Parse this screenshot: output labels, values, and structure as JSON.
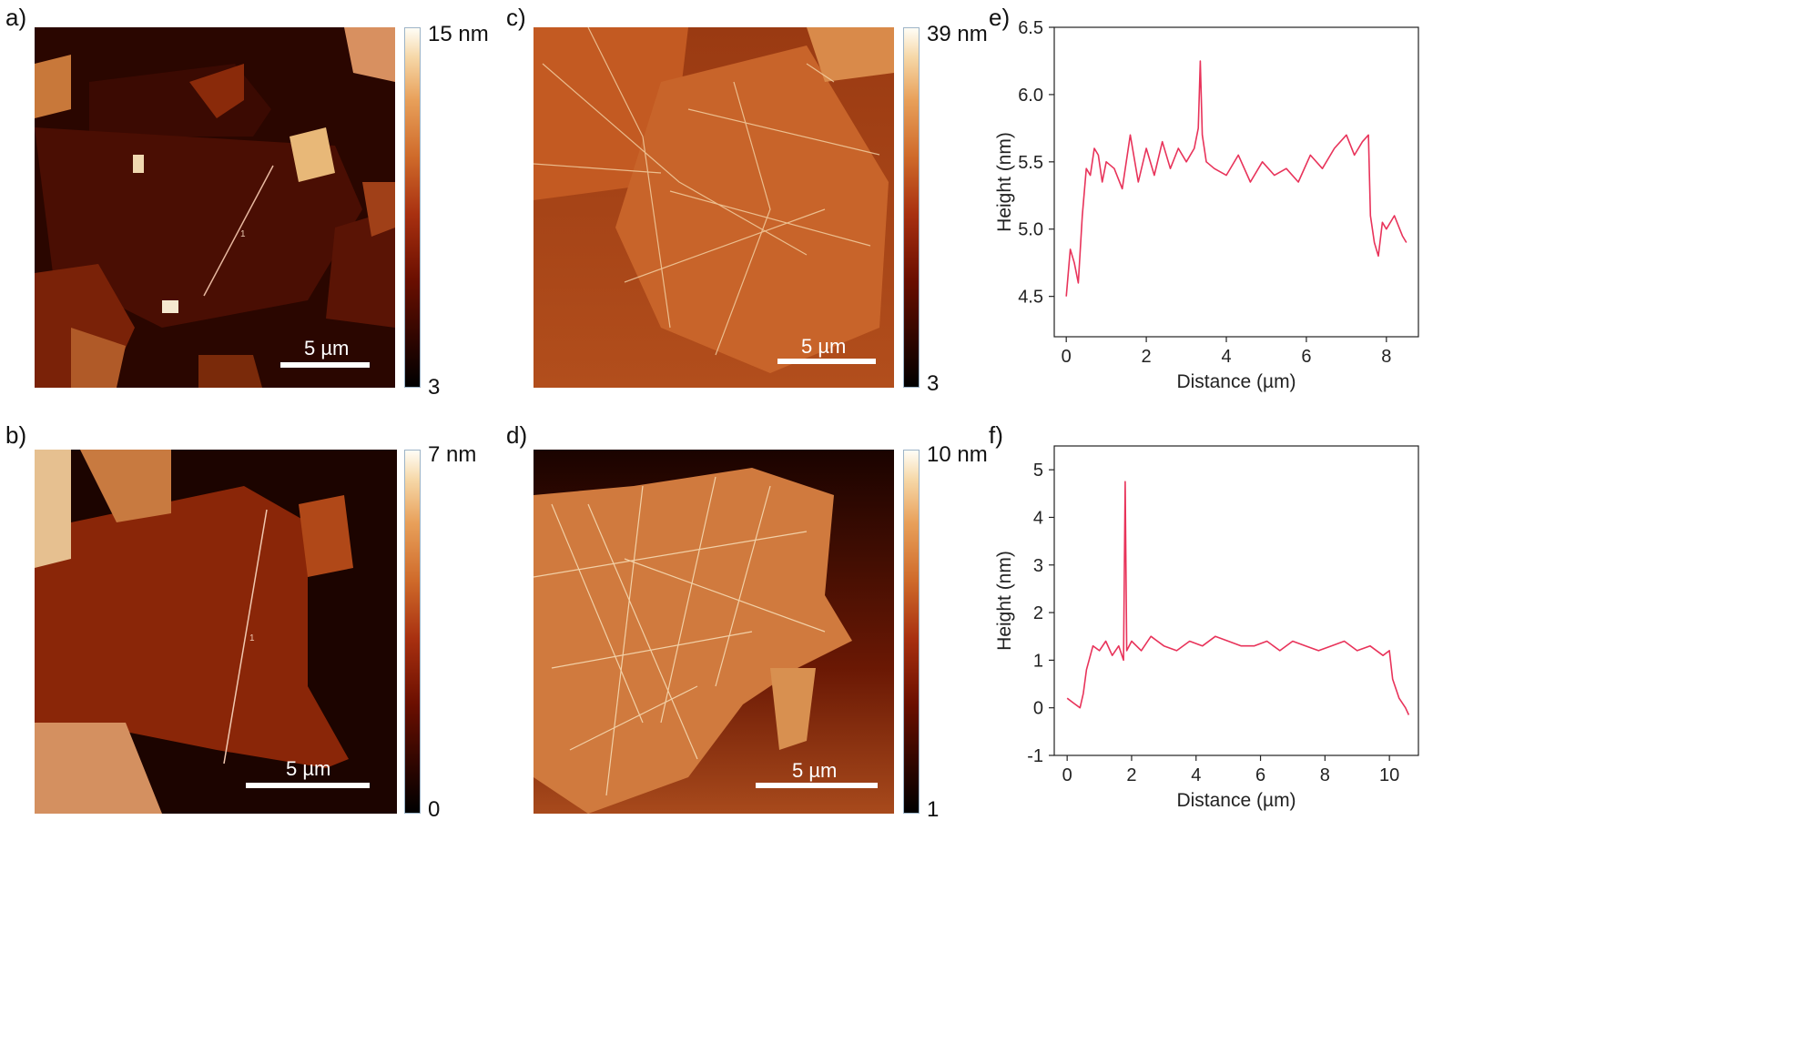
{
  "panels": {
    "a": {
      "label": "a)",
      "cbar_max": "15 nm",
      "cbar_min": "3",
      "scale": "5 µm",
      "profile_marker": "1"
    },
    "b": {
      "label": "b)",
      "cbar_max": "7 nm",
      "cbar_min": "0",
      "scale": "5 µm",
      "profile_marker": "1"
    },
    "c": {
      "label": "c)",
      "cbar_max": "39 nm",
      "cbar_min": "3",
      "scale": "5 µm"
    },
    "d": {
      "label": "d)",
      "cbar_max": "10 nm",
      "cbar_min": "1",
      "scale": "5 µm"
    },
    "e": {
      "label": "e)"
    },
    "f": {
      "label": "f)"
    }
  },
  "colors": {
    "trace": "#e8335a",
    "bg_dark": "#1a0200",
    "mid": "#8a1c04",
    "high": "#f4d29c"
  },
  "chart_data": [
    {
      "panel": "e",
      "type": "line",
      "xlabel": "Distance (µm)",
      "ylabel": "Height (nm)",
      "xlim": [
        -0.3,
        8.8
      ],
      "ylim": [
        4.2,
        6.5
      ],
      "xticks": [
        0,
        2,
        4,
        6,
        8
      ],
      "yticks": [
        4.5,
        5.0,
        5.5,
        6.0,
        6.5
      ],
      "ytick_labels": [
        "4.5",
        "5.0",
        "5.5",
        "6.0",
        "6.5"
      ],
      "series": [
        {
          "x": [
            0,
            0.1,
            0.2,
            0.3,
            0.4,
            0.5,
            0.6,
            0.7,
            0.8,
            0.9,
            1.0,
            1.2,
            1.4,
            1.6,
            1.8,
            2.0,
            2.2,
            2.4,
            2.6,
            2.8,
            3.0,
            3.2,
            3.3,
            3.35,
            3.4,
            3.5,
            3.7,
            4.0,
            4.3,
            4.6,
            4.9,
            5.2,
            5.5,
            5.8,
            6.1,
            6.4,
            6.7,
            7.0,
            7.2,
            7.4,
            7.55,
            7.6,
            7.7,
            7.8,
            7.9,
            8.0,
            8.2,
            8.4,
            8.5
          ],
          "y": [
            4.5,
            4.85,
            4.75,
            4.6,
            5.1,
            5.45,
            5.4,
            5.6,
            5.55,
            5.35,
            5.5,
            5.45,
            5.3,
            5.7,
            5.35,
            5.6,
            5.4,
            5.65,
            5.45,
            5.6,
            5.5,
            5.6,
            5.75,
            6.25,
            5.7,
            5.5,
            5.45,
            5.4,
            5.55,
            5.35,
            5.5,
            5.4,
            5.45,
            5.35,
            5.55,
            5.45,
            5.6,
            5.7,
            5.55,
            5.65,
            5.7,
            5.1,
            4.9,
            4.8,
            5.05,
            5.0,
            5.1,
            4.95,
            4.9
          ]
        }
      ]
    },
    {
      "panel": "f",
      "type": "line",
      "xlabel": "Distance (µm)",
      "ylabel": "Height (nm)",
      "xlim": [
        -0.4,
        10.9
      ],
      "ylim": [
        -1,
        5.5
      ],
      "xticks": [
        0,
        2,
        4,
        6,
        8,
        10
      ],
      "yticks": [
        -1,
        0,
        1,
        2,
        3,
        4,
        5
      ],
      "ytick_labels": [
        "-1",
        "0",
        "1",
        "2",
        "3",
        "4",
        "5"
      ],
      "series": [
        {
          "x": [
            0,
            0.2,
            0.4,
            0.5,
            0.6,
            0.8,
            1.0,
            1.2,
            1.4,
            1.6,
            1.75,
            1.8,
            1.85,
            2.0,
            2.3,
            2.6,
            3.0,
            3.4,
            3.8,
            4.2,
            4.6,
            5.0,
            5.4,
            5.8,
            6.2,
            6.6,
            7.0,
            7.4,
            7.8,
            8.2,
            8.6,
            9.0,
            9.4,
            9.8,
            10.0,
            10.1,
            10.3,
            10.5,
            10.6
          ],
          "y": [
            0.2,
            0.1,
            0.0,
            0.3,
            0.8,
            1.3,
            1.2,
            1.4,
            1.1,
            1.3,
            1.0,
            4.75,
            1.2,
            1.4,
            1.2,
            1.5,
            1.3,
            1.2,
            1.4,
            1.3,
            1.5,
            1.4,
            1.3,
            1.3,
            1.4,
            1.2,
            1.4,
            1.3,
            1.2,
            1.3,
            1.4,
            1.2,
            1.3,
            1.1,
            1.2,
            0.6,
            0.2,
            0.0,
            -0.15
          ]
        }
      ]
    }
  ]
}
